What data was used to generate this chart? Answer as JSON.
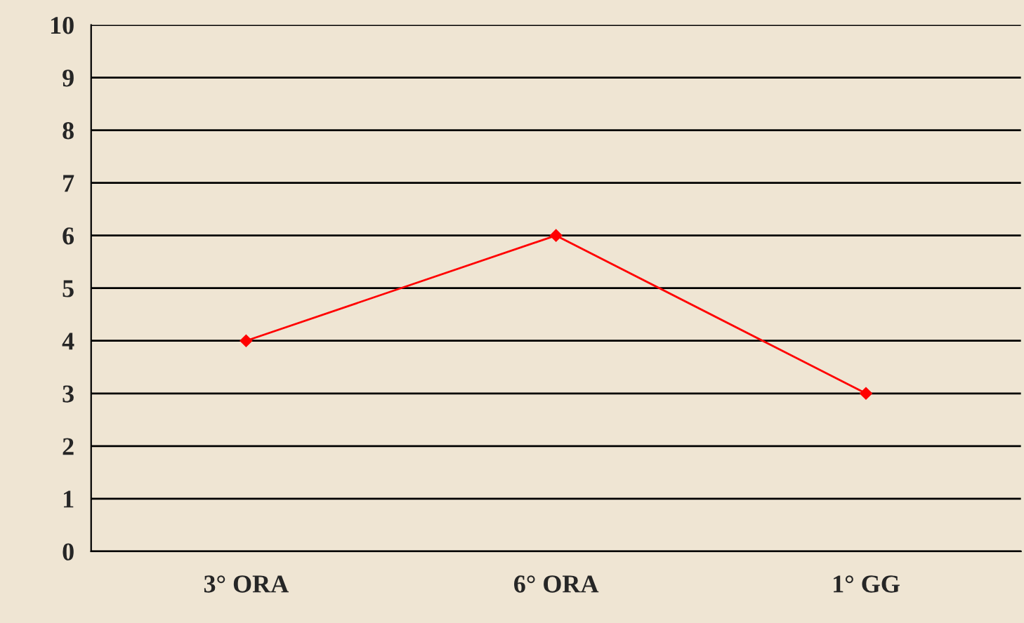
{
  "chart_data": {
    "type": "line",
    "categories": [
      "3° ORA",
      "6° ORA",
      "1° GG"
    ],
    "series": [
      {
        "color": "#ff0000",
        "values": [
          4,
          6,
          3
        ]
      }
    ],
    "ylim": [
      0,
      10
    ],
    "yticks": [
      0,
      1,
      2,
      3,
      4,
      5,
      6,
      7,
      8,
      9,
      10
    ],
    "grid": "y",
    "marker": "diamond",
    "line_style": "solid",
    "legend": false
  }
}
